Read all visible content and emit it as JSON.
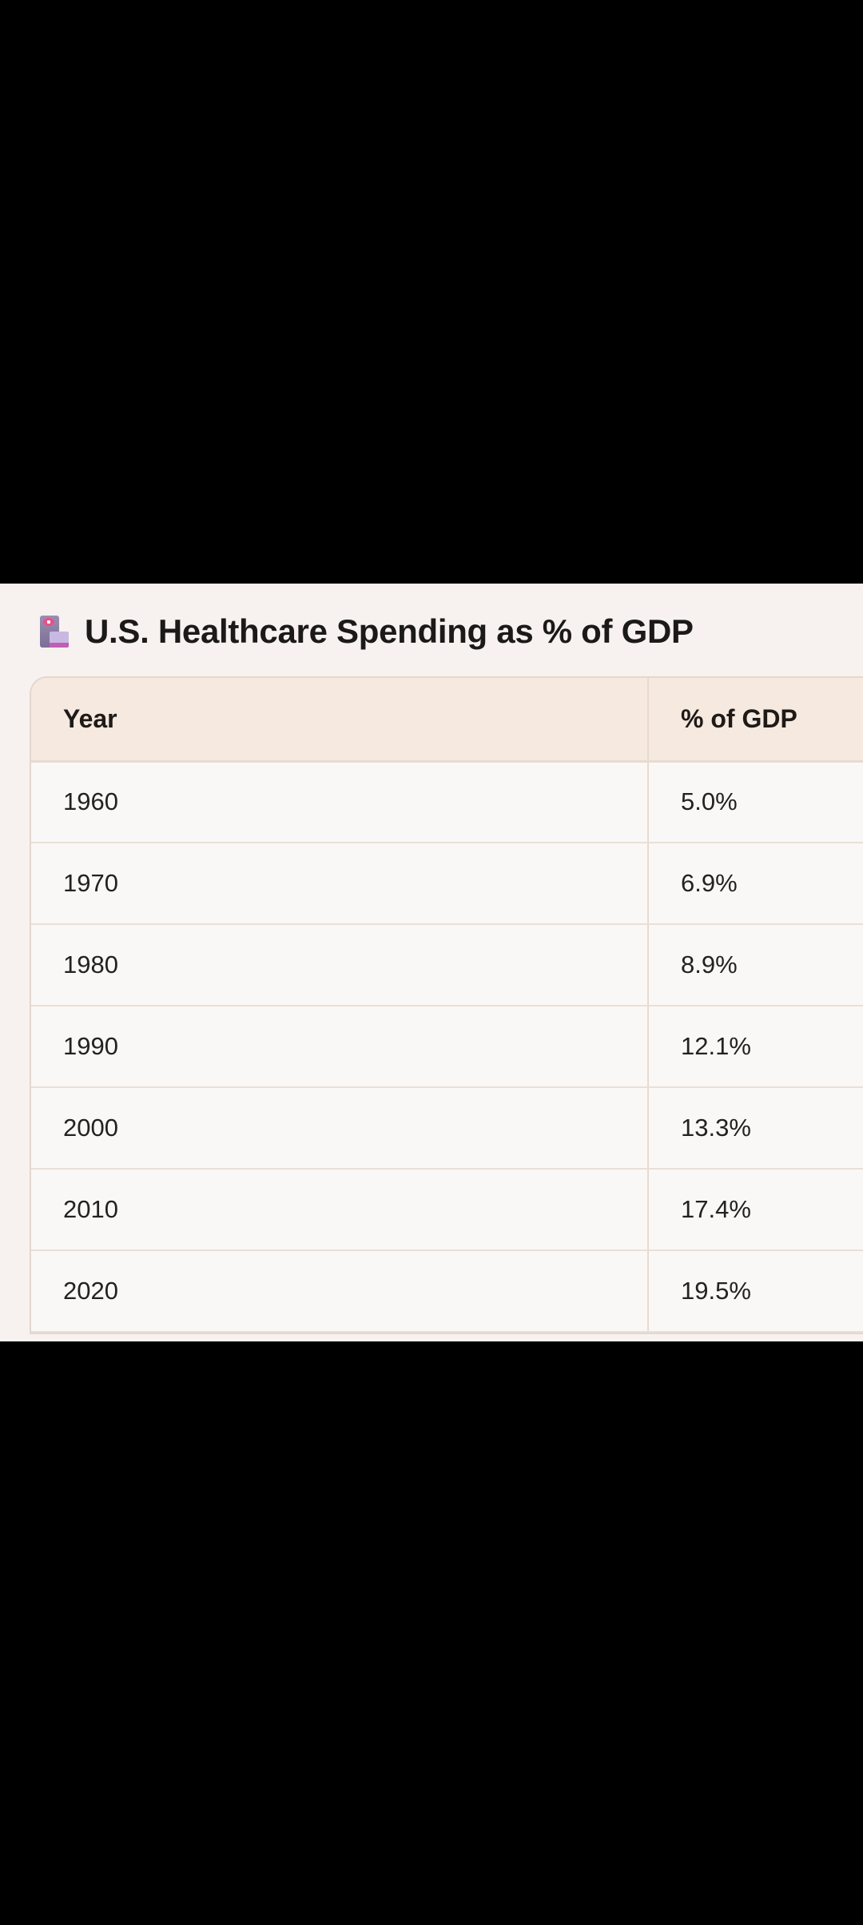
{
  "header": {
    "icon": "hospital-icon",
    "title": "U.S. Healthcare Spending as % of GDP"
  },
  "table": {
    "columns": [
      "Year",
      "% of GDP"
    ],
    "rows": [
      {
        "year": "1960",
        "pct": "5.0%"
      },
      {
        "year": "1970",
        "pct": "6.9%"
      },
      {
        "year": "1980",
        "pct": "8.9%"
      },
      {
        "year": "1990",
        "pct": "12.1%"
      },
      {
        "year": "2000",
        "pct": "13.3%"
      },
      {
        "year": "2010",
        "pct": "17.4%"
      },
      {
        "year": "2020",
        "pct": "19.5%"
      }
    ]
  },
  "colors": {
    "header_bg": "#f6e9df",
    "page_bg": "#f7f2f0",
    "cell_bg": "#faf8f6",
    "border": "#eadfd6"
  }
}
